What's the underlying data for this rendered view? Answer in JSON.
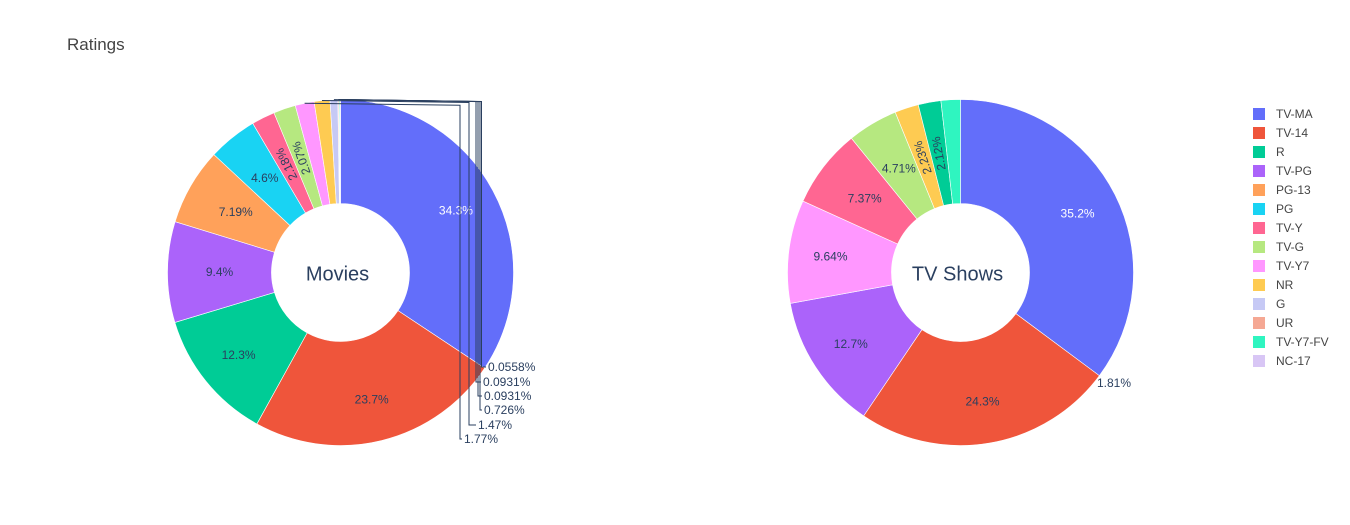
{
  "chart_data": {
    "type": "pie",
    "title": "Ratings",
    "legend_placement": "right",
    "labels": [
      "TV-MA",
      "TV-14",
      "R",
      "TV-PG",
      "PG-13",
      "PG",
      "TV-Y",
      "TV-G",
      "TV-Y7",
      "NR",
      "G",
      "UR",
      "TV-Y7-FV",
      "NC-17"
    ],
    "colors": [
      "#636efa",
      "#EF553B",
      "#00cc96",
      "#ab63fa",
      "#FFA15A",
      "#19d3f3",
      "#FF6692",
      "#B6E880",
      "#FF97FF",
      "#FECB52",
      "#c6c9f5",
      "#f5a894",
      "#2ff5c0",
      "#d8c6f5"
    ],
    "pies": [
      {
        "name": "Movies",
        "slices": [
          {
            "label": "TV-MA",
            "value": 34.3,
            "text": "34.3%"
          },
          {
            "label": "TV-14",
            "value": 23.7,
            "text": "23.7%"
          },
          {
            "label": "R",
            "value": 12.3,
            "text": "12.3%"
          },
          {
            "label": "TV-PG",
            "value": 9.4,
            "text": "9.4%"
          },
          {
            "label": "PG-13",
            "value": 7.19,
            "text": "7.19%"
          },
          {
            "label": "PG",
            "value": 4.6,
            "text": "4.6%"
          },
          {
            "label": "TV-Y",
            "value": 2.18,
            "text": "2.18%"
          },
          {
            "label": "TV-G",
            "value": 2.07,
            "text": "2.07%"
          },
          {
            "label": "TV-Y7",
            "value": 1.77,
            "text": "1.77%"
          },
          {
            "label": "NR",
            "value": 1.47,
            "text": "1.47%"
          },
          {
            "label": "G",
            "value": 0.726,
            "text": "0.726%"
          },
          {
            "label": "UR",
            "value": 0.0931,
            "text": "0.0931%"
          },
          {
            "label": "TV-Y7-FV",
            "value": 0.0931,
            "text": "0.0931%"
          },
          {
            "label": "NC-17",
            "value": 0.0558,
            "text": "0.0558%"
          }
        ]
      },
      {
        "name": "TV Shows",
        "slices": [
          {
            "label": "TV-MA",
            "value": 35.2,
            "text": "35.2%"
          },
          {
            "label": "TV-14",
            "value": 24.3,
            "text": "24.3%"
          },
          {
            "label": "TV-PG",
            "value": 12.7,
            "text": "12.7%"
          },
          {
            "label": "TV-Y7",
            "value": 9.64,
            "text": "9.64%"
          },
          {
            "label": "TV-Y",
            "value": 7.37,
            "text": "7.37%"
          },
          {
            "label": "TV-G",
            "value": 4.71,
            "text": "4.71%"
          },
          {
            "label": "NR",
            "value": 2.23,
            "text": "2.23%"
          },
          {
            "label": "R",
            "value": 2.12,
            "text": "2.12%"
          },
          {
            "label": "TV-Y7-FV",
            "value": 1.81,
            "text": "1.81%"
          }
        ]
      }
    ]
  }
}
